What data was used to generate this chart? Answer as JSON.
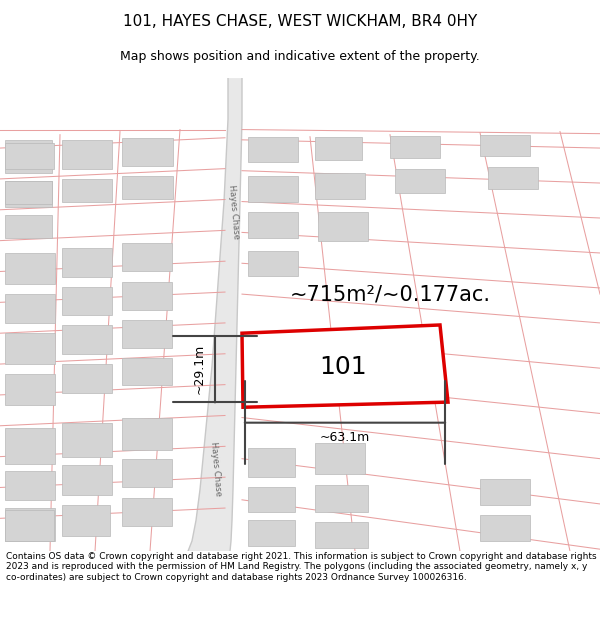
{
  "title_line1": "101, HAYES CHASE, WEST WICKHAM, BR4 0HY",
  "title_line2": "Map shows position and indicative extent of the property.",
  "area_text": "~715m²/~0.177ac.",
  "dim_width": "~63.1m",
  "dim_height": "~29.1m",
  "label_101": "101",
  "footer_text": "Contains OS data © Crown copyright and database right 2021. This information is subject to Crown copyright and database rights 2023 and is reproduced with the permission of HM Land Registry. The polygons (including the associated geometry, namely x, y co-ordinates) are subject to Crown copyright and database rights 2023 Ordnance Survey 100026316.",
  "map_bg": "#f5f0f0",
  "road_fill": "#e8e8e8",
  "road_edge": "#c8c8c8",
  "plot_color": "#dd0000",
  "building_color": "#d4d4d4",
  "building_edge": "#b8b8b8",
  "pink": "#e8a0a0",
  "dim_color": "#444444",
  "title_fs": 11,
  "subtitle_fs": 9,
  "footer_fs": 6.5,
  "area_fs": 15,
  "label_fs": 18,
  "dim_fs": 9,
  "road_label_fs": 6
}
